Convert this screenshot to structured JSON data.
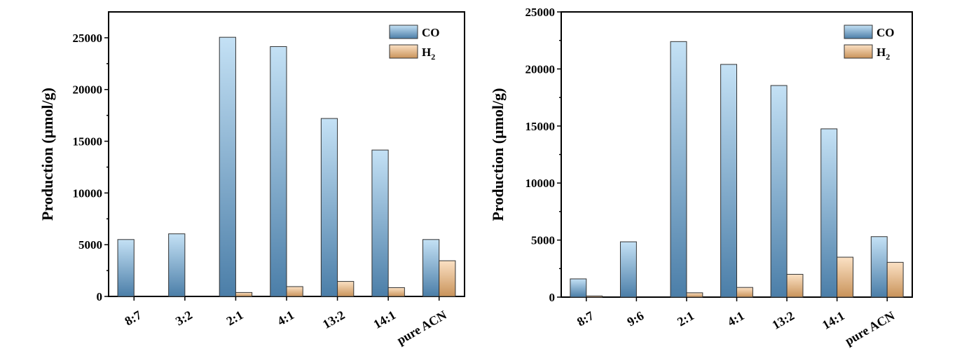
{
  "chart_data": [
    {
      "type": "bar",
      "ylabel": "Production (μmol/g)",
      "ylim": [
        0,
        27500
      ],
      "yticks": [
        0,
        5000,
        10000,
        15000,
        20000,
        25000
      ],
      "categories": [
        "8:7",
        "3:2",
        "2:1",
        "4:1",
        "13:2",
        "14:1",
        "pure ACN"
      ],
      "series": [
        {
          "name": "CO",
          "values": [
            5500,
            6050,
            25050,
            24150,
            17200,
            14150,
            5500
          ]
        },
        {
          "name": "H2",
          "values": [
            0,
            0,
            380,
            950,
            1450,
            850,
            3450
          ]
        }
      ],
      "legend_position": "top-right",
      "grid": false
    },
    {
      "type": "bar",
      "ylabel": "Production (μmol/g)",
      "ylim": [
        0,
        25000
      ],
      "yticks": [
        0,
        5000,
        10000,
        15000,
        20000,
        25000
      ],
      "categories": [
        "8:7",
        "9:6",
        "2:1",
        "4:1",
        "13:2",
        "14:1",
        "pure ACN"
      ],
      "series": [
        {
          "name": "CO",
          "values": [
            1600,
            4850,
            22400,
            20400,
            18550,
            14750,
            5300
          ]
        },
        {
          "name": "H2",
          "values": [
            100,
            0,
            380,
            850,
            2000,
            3500,
            3050
          ]
        }
      ],
      "legend_position": "top-right",
      "grid": false
    }
  ],
  "colors": {
    "co_top": "#c4e1f5",
    "co_bottom": "#4b7ea8",
    "h2_top": "#fbe1c4",
    "h2_bottom": "#c9935a"
  }
}
